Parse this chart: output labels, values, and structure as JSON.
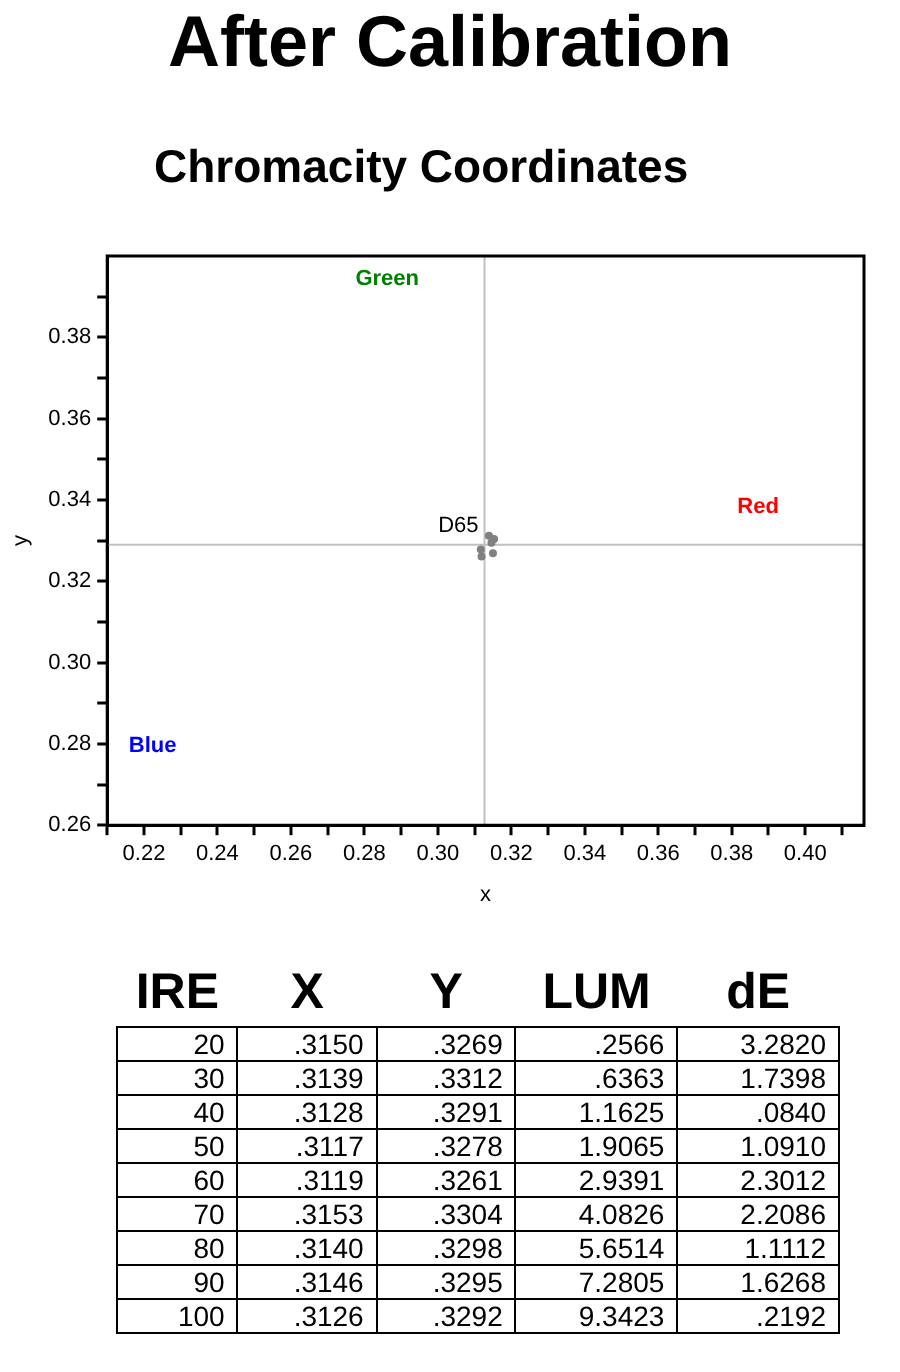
{
  "chart_data": [
    {
      "type": "scatter",
      "title": "After Calibration",
      "subtitle": "Chromacity Coordinates",
      "xlabel": "x",
      "ylabel": "y",
      "xlim": [
        0.21,
        0.416
      ],
      "ylim": [
        0.26,
        0.4
      ],
      "xticks": [
        {
          "value": 0.21,
          "label": null
        },
        0.22,
        {
          "value": 0.23,
          "label": null
        },
        0.24,
        {
          "value": 0.25,
          "label": null
        },
        0.26,
        {
          "value": 0.27,
          "label": null
        },
        0.28,
        {
          "value": 0.29,
          "label": null
        },
        {
          "value": 0.3,
          "label": "0.30"
        },
        {
          "value": 0.31,
          "label": null
        },
        0.32,
        {
          "value": 0.33,
          "label": null
        },
        0.34,
        {
          "value": 0.35,
          "label": null
        },
        0.36,
        {
          "value": 0.37,
          "label": null
        },
        0.38,
        {
          "value": 0.39,
          "label": null
        },
        {
          "value": 0.4,
          "label": "0.40"
        },
        {
          "value": 0.41,
          "label": null
        }
      ],
      "yticks": [
        0.26,
        {
          "value": 0.27,
          "label": null
        },
        0.28,
        {
          "value": 0.29,
          "label": null
        },
        {
          "value": 0.3,
          "label": "0.30"
        },
        {
          "value": 0.31,
          "label": null
        },
        0.32,
        {
          "value": 0.33,
          "label": null
        },
        0.34,
        {
          "value": 0.35,
          "label": null
        },
        0.36,
        {
          "value": 0.37,
          "label": null
        },
        0.38,
        {
          "value": 0.39,
          "label": null
        }
      ],
      "grid": false,
      "legend": false,
      "marker": "circle",
      "series": [
        {
          "color": "#808080",
          "x": [
            0.315,
            0.3139,
            null,
            0.3117,
            0.3119,
            0.3153,
            null,
            0.3146,
            null
          ],
          "values": [
            0.3269,
            0.3312,
            null,
            0.3278,
            0.3261,
            0.3304,
            null,
            0.3295,
            null
          ]
        }
      ],
      "ref_lines": [
        {
          "axis": "x",
          "value": 0.3127,
          "color": "#c0c0c0"
        },
        {
          "axis": "y",
          "value": 0.329,
          "color": "#c0c0c0"
        }
      ],
      "annotations": [
        "Green",
        "Red",
        "Blue",
        {
          "text": "D65",
          "x": 0.3127,
          "y": 0.329
        }
      ]
    },
    {
      "type": "heatmap",
      "ylabel": "IRE",
      "categories": [
        "X",
        "Y",
        "LUM",
        "dE"
      ],
      "y_categories": [
        "20",
        "30",
        "40",
        "50",
        "60",
        "70",
        "80",
        "90",
        "100"
      ],
      "cells": [
        [
          0.315,
          0.3269,
          0.2566,
          3.282
        ],
        [
          0.3139,
          0.3312,
          0.6363,
          1.7398
        ],
        [
          0.3128,
          0.3291,
          1.1625,
          0.084
        ],
        [
          0.3117,
          0.3278,
          1.9065,
          1.091
        ],
        [
          0.3119,
          0.3261,
          2.9391,
          2.3012
        ],
        [
          0.3153,
          0.3304,
          4.0826,
          2.2086
        ],
        [
          0.314,
          0.3298,
          5.6514,
          1.1112
        ],
        [
          0.3146,
          0.3295,
          7.2805,
          1.6268
        ],
        [
          0.3126,
          0.3292,
          9.3423,
          0.2192
        ]
      ],
      "cell_labels": [
        [
          ".3150",
          ".3269",
          ".2566",
          "3.2820"
        ],
        [
          ".3139",
          ".3312",
          ".6363",
          "1.7398"
        ],
        [
          ".3128",
          ".3291",
          "1.1625",
          ".0840"
        ],
        [
          ".3117",
          ".3278",
          "1.9065",
          "1.0910"
        ],
        [
          ".3119",
          ".3261",
          "2.9391",
          "2.3012"
        ],
        [
          ".3153",
          ".3304",
          "4.0826",
          "2.2086"
        ],
        [
          ".3140",
          ".3298",
          "5.6514",
          "1.1112"
        ],
        [
          ".3146",
          ".3295",
          "7.2805",
          "1.6268"
        ],
        [
          ".3126",
          ".3292",
          "9.3423",
          ".2192"
        ]
      ]
    }
  ]
}
